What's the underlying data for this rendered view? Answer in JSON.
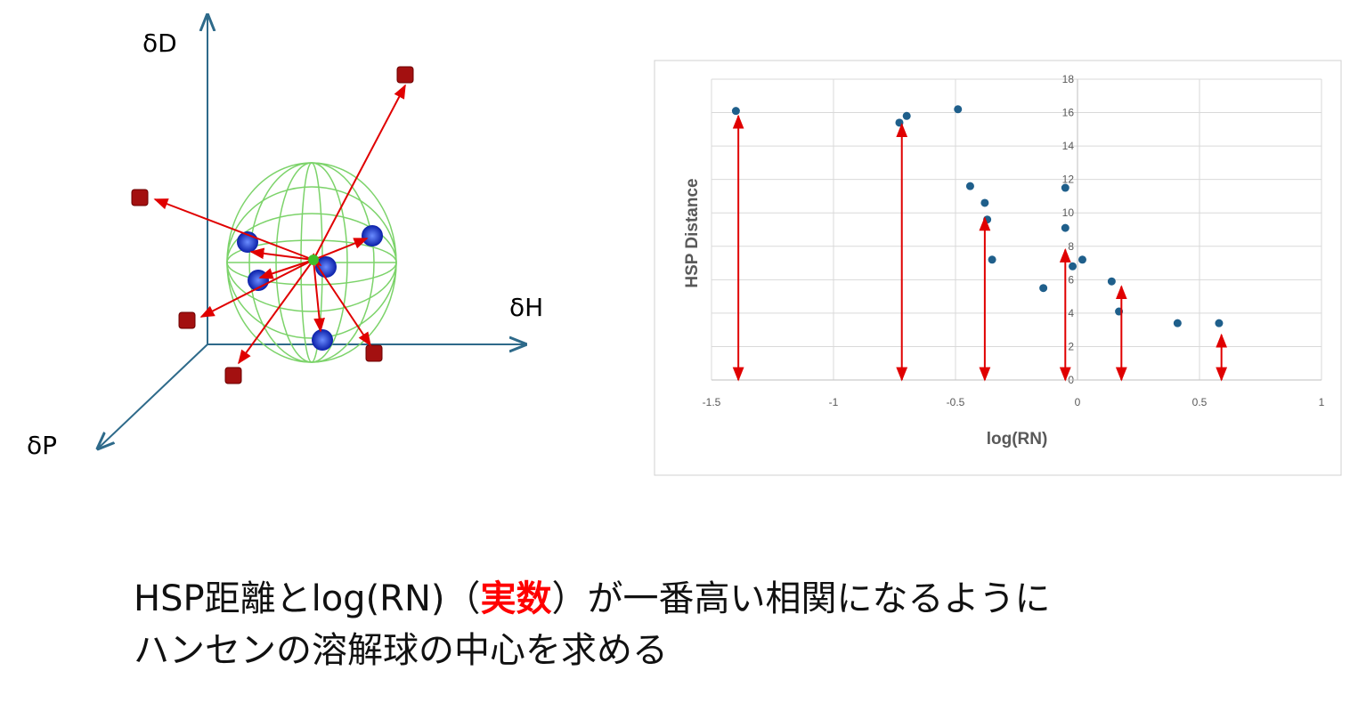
{
  "diagram": {
    "axis_labels": [
      "δD",
      "δH",
      "δP"
    ]
  },
  "chart_data": {
    "type": "scatter",
    "xlabel": "log(RN)",
    "ylabel": "HSP Distance",
    "x": [
      -1.4,
      -0.73,
      -0.7,
      -0.49,
      -0.44,
      -0.38,
      -0.37,
      -0.35,
      -0.14,
      -0.05,
      -0.05,
      -0.02,
      0.02,
      0.14,
      0.17,
      0.41,
      0.58
    ],
    "values": [
      16.1,
      15.4,
      15.8,
      16.2,
      11.6,
      10.6,
      9.6,
      7.2,
      5.5,
      11.5,
      9.1,
      6.8,
      7.2,
      5.9,
      4.1,
      3.4,
      3.4
    ],
    "color": "#1f5f8b",
    "arrows": {
      "color": "#e00000",
      "x": [
        -1.39,
        -0.72,
        -0.38,
        -0.05,
        0.18,
        0.59
      ],
      "values": [
        15.8,
        15.3,
        9.7,
        7.8,
        5.6,
        2.7
      ]
    },
    "xlim": [
      -1.5,
      1
    ],
    "xticks": [
      -1.5,
      -1,
      -0.5,
      0,
      0.5,
      1
    ],
    "ylim": [
      0,
      18
    ],
    "yticks": [
      0,
      2,
      4,
      6,
      8,
      10,
      12,
      14,
      16,
      18
    ],
    "grid": true
  },
  "caption": {
    "line1": [
      "HSP距離とlog(RN)（",
      "実数",
      "）が一番高い相関になるように"
    ],
    "line2": "ハンセンの溶解球の中心を求める"
  }
}
